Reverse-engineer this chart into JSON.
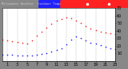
{
  "title_text": "Milwaukee Weather  Outdoor Temp",
  "title_bg": "#444444",
  "title_fg": "#cccccc",
  "temp_color": "#ff2222",
  "dew_color": "#2222ff",
  "bg_color": "#ffffff",
  "outer_bg": "#888888",
  "grid_color": "#aaaaaa",
  "border_color": "#000000",
  "legend_blue": "#2222ff",
  "legend_red": "#ff2222",
  "temp_data": [
    [
      0,
      28
    ],
    [
      1,
      27
    ],
    [
      2,
      26
    ],
    [
      3,
      25
    ],
    [
      4,
      24
    ],
    [
      5,
      23
    ],
    [
      6,
      27
    ],
    [
      7,
      33
    ],
    [
      8,
      39
    ],
    [
      9,
      44
    ],
    [
      10,
      49
    ],
    [
      11,
      53
    ],
    [
      12,
      56
    ],
    [
      13,
      58
    ],
    [
      14,
      57
    ],
    [
      15,
      54
    ],
    [
      16,
      50
    ],
    [
      17,
      46
    ],
    [
      18,
      43
    ],
    [
      19,
      41
    ],
    [
      20,
      39
    ],
    [
      21,
      38
    ],
    [
      22,
      37
    ],
    [
      23,
      36
    ]
  ],
  "dew_data": [
    [
      0,
      8
    ],
    [
      1,
      8
    ],
    [
      2,
      8
    ],
    [
      3,
      7
    ],
    [
      4,
      7
    ],
    [
      5,
      7
    ],
    [
      6,
      7
    ],
    [
      7,
      8
    ],
    [
      8,
      9
    ],
    [
      9,
      10
    ],
    [
      10,
      12
    ],
    [
      11,
      14
    ],
    [
      12,
      17
    ],
    [
      13,
      22
    ],
    [
      14,
      28
    ],
    [
      15,
      32
    ],
    [
      16,
      30
    ],
    [
      17,
      27
    ],
    [
      18,
      24
    ],
    [
      19,
      23
    ],
    [
      20,
      21
    ],
    [
      21,
      19
    ],
    [
      22,
      17
    ],
    [
      23,
      15
    ]
  ],
  "xlim": [
    0,
    23
  ],
  "ylim": [
    0,
    70
  ],
  "xticks": [
    1,
    3,
    5,
    7,
    9,
    11,
    13,
    15,
    17,
    19,
    21,
    23
  ],
  "ytick_vals": [
    10,
    20,
    30,
    40,
    50,
    60,
    70
  ],
  "vgrid_positions": [
    1,
    3,
    5,
    7,
    9,
    11,
    13,
    15,
    17,
    19,
    21,
    23
  ],
  "tick_fontsize": 3.5,
  "marker_size": 1.2
}
